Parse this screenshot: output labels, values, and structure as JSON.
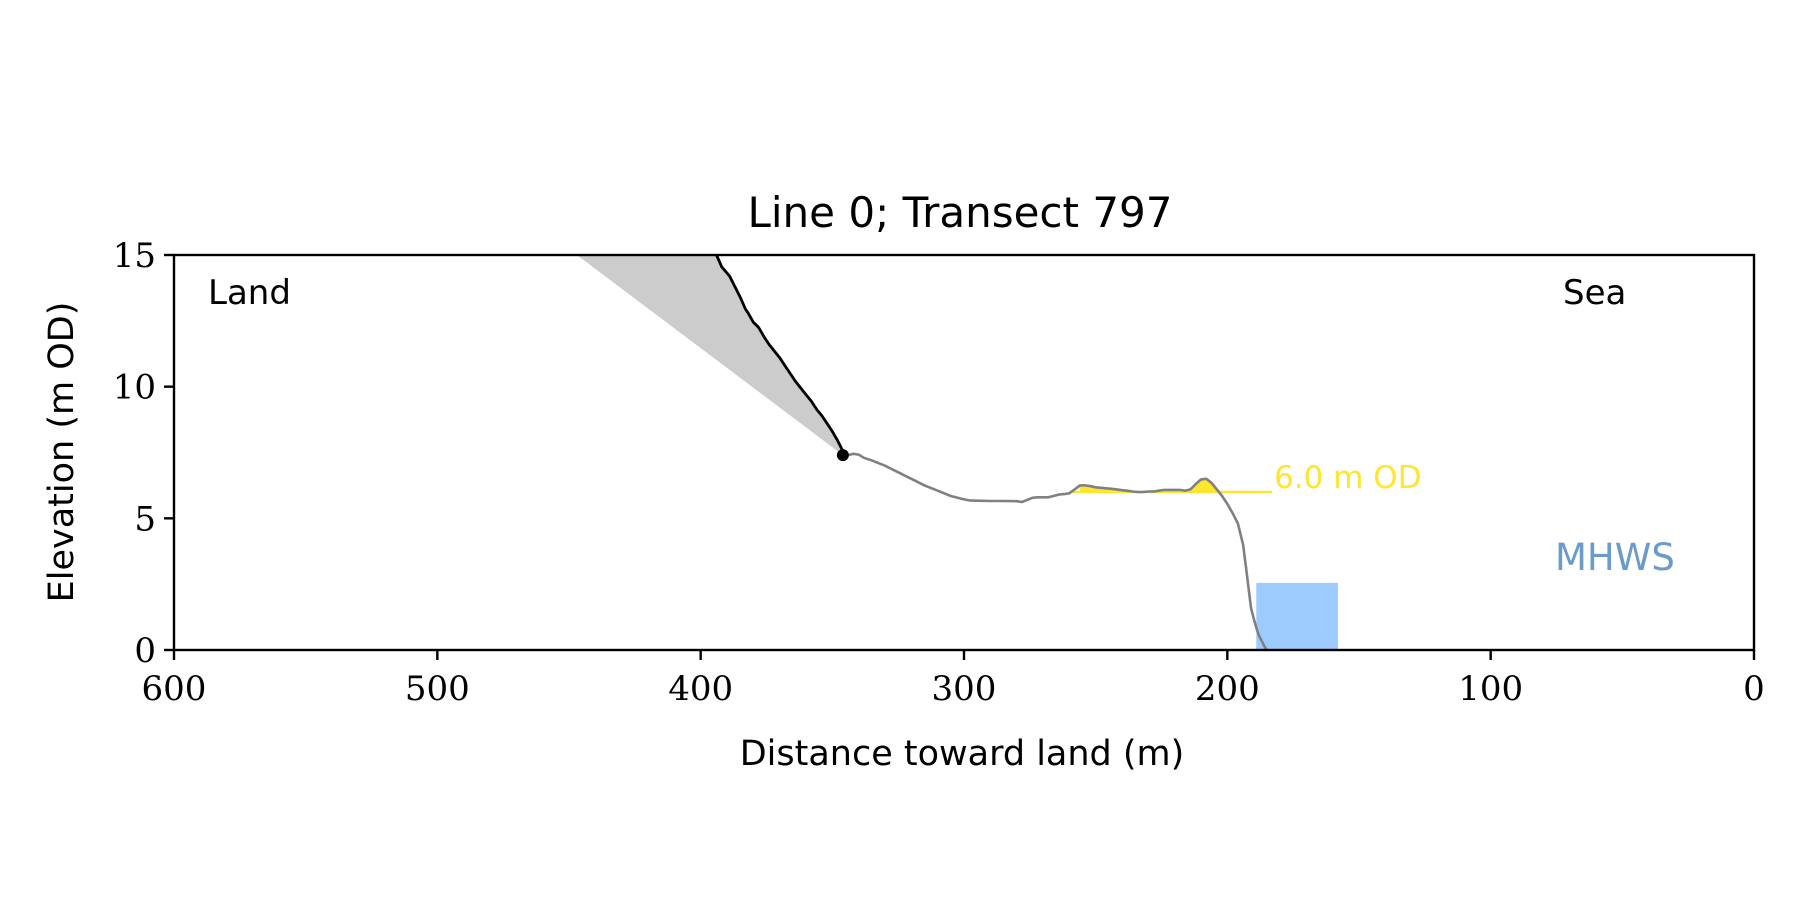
{
  "chart_data": {
    "type": "line",
    "title": "Line 0; Transect 797",
    "xlabel": "Distance toward land (m)",
    "ylabel": "Elevation (m OD)",
    "xlim": [
      600,
      0
    ],
    "ylim": [
      0,
      15
    ],
    "x_reversed": true,
    "grid": false,
    "x_ticks": [
      600,
      500,
      400,
      300,
      200,
      100,
      0
    ],
    "y_ticks": [
      0,
      5,
      10,
      15
    ],
    "annotations": {
      "land_label": "Land",
      "sea_label": "Sea",
      "threshold_label": "6.0 m OD",
      "mhws_label": "MHWS"
    },
    "colors": {
      "cliff": "#000000",
      "profile": "#808080",
      "wedge": "#cccccc",
      "threshold": "#ffe62e",
      "mhws_fill": "#9ecbff",
      "mhws_text": "#6a9bcc"
    },
    "cliff_series": {
      "x": [
        394,
        392,
        389,
        387,
        385,
        383,
        382,
        380,
        378,
        376,
        374,
        372,
        370,
        368,
        366,
        364,
        362,
        360,
        358,
        356,
        354,
        352,
        350,
        348,
        346
      ],
      "y": [
        15.0,
        14.55,
        14.2,
        13.8,
        13.4,
        12.95,
        12.8,
        12.45,
        12.25,
        11.9,
        11.6,
        11.35,
        11.1,
        10.8,
        10.5,
        10.2,
        9.95,
        9.7,
        9.45,
        9.15,
        8.9,
        8.6,
        8.3,
        7.95,
        7.55
      ]
    },
    "cliff_toe": {
      "x": 346,
      "y": 7.4
    },
    "crest": {
      "x": 394,
      "y": 15.0
    },
    "wedge_top": {
      "x": 447,
      "y": 15.0
    },
    "profile_series": {
      "x": [
        346,
        344,
        342,
        340,
        338,
        335,
        330,
        325,
        320,
        315,
        310,
        305,
        300,
        298,
        295,
        290,
        285,
        280,
        278,
        276,
        274,
        272,
        270,
        268,
        266,
        264,
        262,
        260,
        258,
        256,
        254,
        252,
        250,
        248,
        246,
        244,
        242,
        240,
        238,
        236,
        234,
        232,
        230,
        228,
        226,
        224,
        222,
        220,
        218,
        216,
        214,
        212,
        210,
        208,
        206,
        204,
        202,
        200,
        198,
        196,
        194,
        193,
        192,
        191,
        190,
        189,
        188,
        187,
        186,
        185
      ],
      "y": [
        7.4,
        7.4,
        7.45,
        7.42,
        7.3,
        7.2,
        7.0,
        6.75,
        6.5,
        6.25,
        6.05,
        5.85,
        5.72,
        5.68,
        5.67,
        5.66,
        5.66,
        5.65,
        5.62,
        5.7,
        5.78,
        5.8,
        5.8,
        5.8,
        5.85,
        5.9,
        5.92,
        5.95,
        6.1,
        6.25,
        6.25,
        6.22,
        6.18,
        6.16,
        6.14,
        6.12,
        6.1,
        6.07,
        6.05,
        6.02,
        6.0,
        6.0,
        6.02,
        6.02,
        6.05,
        6.08,
        6.08,
        6.08,
        6.08,
        6.05,
        6.1,
        6.3,
        6.48,
        6.5,
        6.35,
        6.1,
        5.85,
        5.55,
        5.2,
        4.8,
        4.0,
        3.2,
        2.4,
        1.6,
        1.2,
        0.85,
        0.55,
        0.35,
        0.15,
        0.0
      ]
    },
    "threshold_line": {
      "y": 6.0,
      "x_start": 260,
      "x_end": 183
    },
    "mhws_box": {
      "x_start": 189,
      "x_end": 158,
      "y_top": 2.55,
      "y_bottom": 0.0
    }
  }
}
